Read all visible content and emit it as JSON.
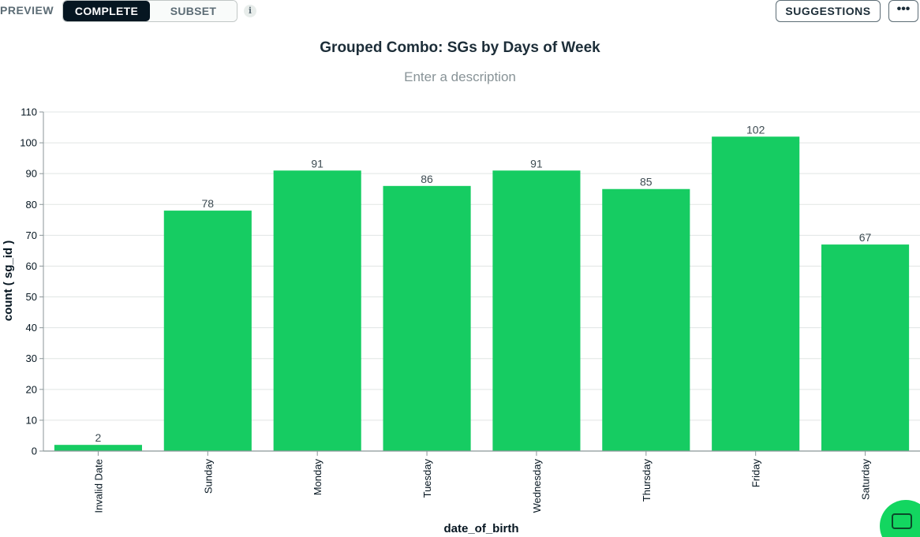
{
  "toolbar": {
    "preview_label": "PREVIEW",
    "complete_label": "COMPLETE",
    "subset_label": "SUBSET",
    "info_label": "i",
    "suggestions_label": "SUGGESTIONS",
    "more_label": "•••"
  },
  "colors": {
    "bar": "#16cc62",
    "grid": "#e1e5e4",
    "axis": "#8b9699",
    "dark": "#061621"
  },
  "chart_data": {
    "type": "bar",
    "title": "Grouped Combo: SGs by Days of Week",
    "description": "Enter a description",
    "xlabel": "date_of_birth",
    "ylabel": "count ( sg_id )",
    "categories": [
      "Invalid Date",
      "Sunday",
      "Monday",
      "Tuesday",
      "Wednesday",
      "Thursday",
      "Friday",
      "Saturday"
    ],
    "values": [
      2,
      78,
      91,
      86,
      91,
      85,
      102,
      67
    ],
    "ylim": [
      0,
      110
    ],
    "yticks": [
      0,
      10,
      20,
      30,
      40,
      50,
      60,
      70,
      80,
      90,
      100,
      110
    ],
    "grid": true,
    "data_labels": true
  }
}
